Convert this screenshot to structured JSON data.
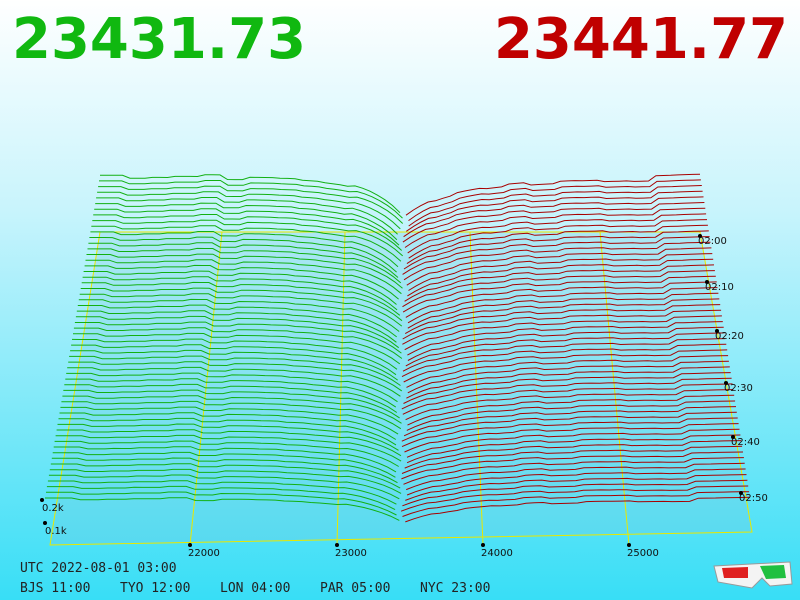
{
  "prices": {
    "bid": "23431.73",
    "ask": "23441.77"
  },
  "price_axis": [
    "22000",
    "23000",
    "24000",
    "25000"
  ],
  "time_axis": [
    "02:00",
    "02:10",
    "02:20",
    "02:30",
    "02:40",
    "02:50"
  ],
  "depth_axis": [
    "0.2k",
    "0.1k"
  ],
  "footer": {
    "utc": "UTC 2022-08-01 03:00",
    "zones": [
      "BJS 11:00",
      "TYO 12:00",
      "LON 04:00",
      "PAR 05:00",
      "NYC 23:00"
    ]
  }
}
